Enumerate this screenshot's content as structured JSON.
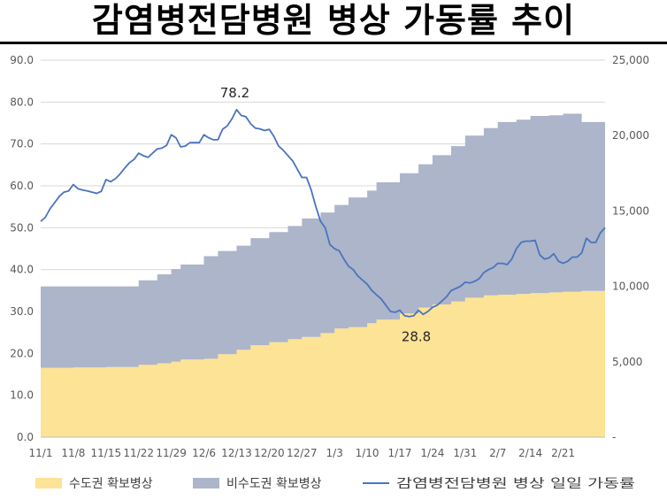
{
  "title": "감염병전담병원 병상 가동률 추이",
  "chart_data": {
    "type": "area",
    "title": "감염병전담병원 병상 가동률 추이",
    "x_ticks": [
      "11/1",
      "11/8",
      "11/15",
      "11/22",
      "11/29",
      "12/6",
      "12/13",
      "12/20",
      "12/27",
      "1/3",
      "1/10",
      "1/17",
      "1/24",
      "1/31",
      "2/7",
      "2/14",
      "2/21"
    ],
    "x_ticks_day_index": [
      0,
      7,
      14,
      21,
      28,
      35,
      42,
      49,
      56,
      63,
      70,
      77,
      84,
      91,
      98,
      105,
      112
    ],
    "y_left": {
      "ticks": [
        "0.0",
        "10.0",
        "20.0",
        "30.0",
        "40.0",
        "50.0",
        "60.0",
        "70.0",
        "80.0",
        "90.0"
      ],
      "range": [
        0,
        90
      ]
    },
    "y_right": {
      "ticks": [
        "-",
        "5,000",
        "10,000",
        "15,000",
        "20,000",
        "25,000"
      ],
      "range": [
        0,
        25000
      ]
    },
    "grid": "horizontal",
    "legend_position": "bottom",
    "series": [
      {
        "name": "수도권 확보병상",
        "axis": "right",
        "kind": "area",
        "color": "#fde395",
        "points": [
          [
            0,
            4600
          ],
          [
            7,
            4620
          ],
          [
            14,
            4650
          ],
          [
            18,
            4650
          ],
          [
            21,
            4800
          ],
          [
            25,
            4900
          ],
          [
            28,
            5000
          ],
          [
            30,
            5150
          ],
          [
            35,
            5200
          ],
          [
            38,
            5500
          ],
          [
            42,
            5800
          ],
          [
            45,
            6100
          ],
          [
            49,
            6300
          ],
          [
            53,
            6500
          ],
          [
            56,
            6650
          ],
          [
            60,
            6900
          ],
          [
            63,
            7200
          ],
          [
            66,
            7300
          ],
          [
            70,
            7550
          ],
          [
            72,
            7800
          ],
          [
            77,
            8200
          ],
          [
            81,
            8600
          ],
          [
            84,
            8800
          ],
          [
            88,
            9000
          ],
          [
            91,
            9250
          ],
          [
            95,
            9400
          ],
          [
            98,
            9450
          ],
          [
            102,
            9500
          ],
          [
            105,
            9550
          ],
          [
            109,
            9600
          ],
          [
            112,
            9650
          ],
          [
            116,
            9700
          ]
        ]
      },
      {
        "name": "비수도권 확보병상",
        "axis": "right",
        "kind": "stacked-area",
        "color": "#acb5c9",
        "points": [
          [
            0,
            5400
          ],
          [
            7,
            5380
          ],
          [
            14,
            5350
          ],
          [
            18,
            5350
          ],
          [
            21,
            5600
          ],
          [
            25,
            5900
          ],
          [
            28,
            6150
          ],
          [
            30,
            6300
          ],
          [
            35,
            6800
          ],
          [
            38,
            6850
          ],
          [
            42,
            6900
          ],
          [
            45,
            7100
          ],
          [
            49,
            7300
          ],
          [
            53,
            7500
          ],
          [
            56,
            7850
          ],
          [
            60,
            8000
          ],
          [
            63,
            8200
          ],
          [
            66,
            8600
          ],
          [
            70,
            8800
          ],
          [
            72,
            9100
          ],
          [
            77,
            9300
          ],
          [
            81,
            9500
          ],
          [
            84,
            9900
          ],
          [
            88,
            10300
          ],
          [
            91,
            10750
          ],
          [
            95,
            11100
          ],
          [
            98,
            11450
          ],
          [
            102,
            11550
          ],
          [
            105,
            11750
          ],
          [
            109,
            11750
          ],
          [
            112,
            11800
          ],
          [
            116,
            11200
          ]
        ]
      },
      {
        "name": "감염병전담병원 병상 일일 가동률",
        "axis": "left",
        "kind": "line",
        "color": "#4a74c0",
        "points": [
          [
            0,
            51.5
          ],
          [
            1,
            52.5
          ],
          [
            2,
            54.5
          ],
          [
            3,
            56
          ],
          [
            4,
            57.5
          ],
          [
            5,
            58.5
          ],
          [
            6,
            58.8
          ],
          [
            7,
            60.3
          ],
          [
            8,
            59.3
          ],
          [
            9,
            59
          ],
          [
            10,
            58.8
          ],
          [
            11,
            58.5
          ],
          [
            12,
            58.2
          ],
          [
            13,
            58.7
          ],
          [
            14,
            61.5
          ],
          [
            15,
            61
          ],
          [
            16,
            61.7
          ],
          [
            17,
            62.8
          ],
          [
            18,
            64.2
          ],
          [
            19,
            65.5
          ],
          [
            20,
            66.3
          ],
          [
            21,
            67.8
          ],
          [
            22,
            67.2
          ],
          [
            23,
            66.8
          ],
          [
            24,
            67.8
          ],
          [
            25,
            68.8
          ],
          [
            26,
            69
          ],
          [
            27,
            69.7
          ],
          [
            28,
            72.2
          ],
          [
            29,
            71.5
          ],
          [
            30,
            69.3
          ],
          [
            31,
            69.5
          ],
          [
            32,
            70.3
          ],
          [
            33,
            70.3
          ],
          [
            34,
            70.3
          ],
          [
            35,
            72.2
          ],
          [
            36,
            71.5
          ],
          [
            37,
            71
          ],
          [
            38,
            71
          ],
          [
            39,
            73.5
          ],
          [
            40,
            74.3
          ],
          [
            41,
            76
          ],
          [
            42,
            78.2
          ],
          [
            43,
            76.8
          ],
          [
            44,
            76.5
          ],
          [
            45,
            74.8
          ],
          [
            46,
            73.8
          ],
          [
            47,
            73.6
          ],
          [
            48,
            73.2
          ],
          [
            49,
            73.5
          ],
          [
            50,
            71.8
          ],
          [
            51,
            69.5
          ],
          [
            52,
            68.5
          ],
          [
            53,
            67.2
          ],
          [
            54,
            66
          ],
          [
            55,
            64
          ],
          [
            56,
            62
          ],
          [
            57,
            62
          ],
          [
            58,
            59
          ],
          [
            59,
            55
          ],
          [
            60,
            51.5
          ],
          [
            61,
            50
          ],
          [
            62,
            46
          ],
          [
            63,
            45
          ],
          [
            64,
            44.5
          ],
          [
            65,
            42.5
          ],
          [
            66,
            40.8
          ],
          [
            67,
            40
          ],
          [
            68,
            38.5
          ],
          [
            69,
            37.5
          ],
          [
            70,
            36.5
          ],
          [
            71,
            35
          ],
          [
            72,
            34
          ],
          [
            73,
            33
          ],
          [
            74,
            31.5
          ],
          [
            75,
            30
          ],
          [
            76,
            29.8
          ],
          [
            77,
            30.3
          ],
          [
            78,
            29
          ],
          [
            79,
            28.8
          ],
          [
            80,
            29
          ],
          [
            81,
            30.3
          ],
          [
            82,
            29.3
          ],
          [
            83,
            30
          ],
          [
            84,
            31
          ],
          [
            85,
            31.5
          ],
          [
            86,
            32.5
          ],
          [
            87,
            33.5
          ],
          [
            88,
            35
          ],
          [
            89,
            35.5
          ],
          [
            90,
            36
          ],
          [
            91,
            37
          ],
          [
            92,
            36.8
          ],
          [
            93,
            37.2
          ],
          [
            94,
            37.8
          ],
          [
            95,
            39.3
          ],
          [
            96,
            40
          ],
          [
            97,
            40.5
          ],
          [
            98,
            41.5
          ],
          [
            99,
            41.5
          ],
          [
            100,
            41.2
          ],
          [
            101,
            42.5
          ],
          [
            102,
            45
          ],
          [
            103,
            46.5
          ],
          [
            104,
            46.8
          ],
          [
            105,
            46.8
          ],
          [
            106,
            47
          ],
          [
            107,
            43.5
          ],
          [
            108,
            42.5
          ],
          [
            109,
            42.8
          ],
          [
            110,
            43.8
          ],
          [
            111,
            42
          ],
          [
            112,
            41.5
          ],
          [
            113,
            42
          ],
          [
            114,
            43
          ],
          [
            115,
            43
          ],
          [
            116,
            44
          ],
          [
            117,
            47.5
          ],
          [
            118,
            46.5
          ],
          [
            119,
            46.5
          ],
          [
            120,
            48.8
          ],
          [
            121,
            50
          ]
        ]
      }
    ],
    "annotations": [
      {
        "text": "78.2",
        "x": 42,
        "y": 78.2
      },
      {
        "text": "28.8",
        "x": 79,
        "y": 28.8
      }
    ]
  }
}
